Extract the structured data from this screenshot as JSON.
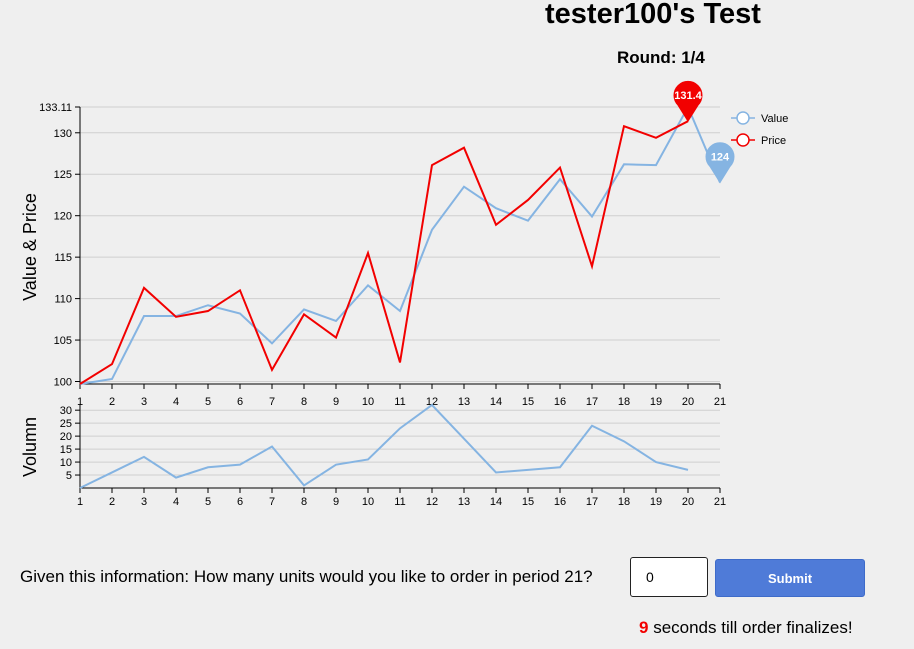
{
  "header": {
    "title": "tester100's Test",
    "round": "Round: 1/4"
  },
  "colors": {
    "value": "#85b4e2",
    "price": "#f20000",
    "button": "#4f7bd8",
    "countdown": "#f20000"
  },
  "chart_data": [
    {
      "type": "line",
      "ylabel": "Value & Price",
      "x": [
        1,
        2,
        3,
        4,
        5,
        6,
        7,
        8,
        9,
        10,
        11,
        12,
        13,
        14,
        15,
        16,
        17,
        18,
        19,
        20,
        21
      ],
      "y_ticks": [
        "100",
        "105",
        "110",
        "115",
        "120",
        "125",
        "130",
        "133.11"
      ],
      "ylim": [
        99.7,
        133.11
      ],
      "series": [
        {
          "name": "Value",
          "x": [
            1,
            2,
            3,
            4,
            5,
            6,
            7,
            8,
            9,
            10,
            11,
            12,
            13,
            14,
            15,
            16,
            17,
            18,
            19,
            20,
            21
          ],
          "values": [
            99.7,
            100.3,
            107.9,
            107.9,
            109.2,
            108.2,
            104.6,
            108.7,
            107.3,
            111.6,
            108.5,
            118.3,
            123.5,
            120.9,
            119.4,
            124.4,
            119.9,
            126.2,
            126.1,
            133.11,
            124
          ]
        },
        {
          "name": "Price",
          "x": [
            1,
            2,
            3,
            4,
            5,
            6,
            7,
            8,
            9,
            10,
            11,
            12,
            13,
            14,
            15,
            16,
            17,
            18,
            19,
            20
          ],
          "values": [
            99.7,
            102.1,
            111.3,
            107.8,
            108.5,
            111.0,
            101.4,
            108.1,
            105.3,
            115.5,
            102.3,
            126.1,
            128.2,
            118.9,
            121.9,
            125.8,
            113.9,
            130.8,
            129.4,
            131.4
          ]
        }
      ],
      "markers": [
        {
          "series": "Price",
          "label": "131.4"
        },
        {
          "series": "Value",
          "label": "124"
        }
      ],
      "legend": [
        "Value",
        "Price"
      ],
      "legend_position": "top-right",
      "grid": true
    },
    {
      "type": "line",
      "ylabel": "Volumn",
      "x": [
        1,
        2,
        3,
        4,
        5,
        6,
        7,
        8,
        9,
        10,
        11,
        12,
        13,
        14,
        15,
        16,
        17,
        18,
        19,
        20,
        21
      ],
      "y_ticks": [
        "5",
        "10",
        "15",
        "20",
        "25",
        "30"
      ],
      "ylim": [
        0,
        32
      ],
      "series": [
        {
          "name": "Volumn",
          "x": [
            1,
            2,
            3,
            4,
            5,
            6,
            7,
            8,
            9,
            10,
            11,
            12,
            13,
            14,
            15,
            16,
            17,
            18,
            19,
            20
          ],
          "values": [
            0,
            6,
            12,
            4,
            8,
            9,
            16,
            1,
            9,
            11,
            23,
            32,
            19,
            6,
            7,
            8,
            24,
            18,
            10,
            7
          ]
        }
      ],
      "grid": true
    }
  ],
  "question": {
    "text": "Given this information: How many units would you like to order in period 21?",
    "value": "0"
  },
  "submit": {
    "label": "Submit"
  },
  "countdown": {
    "seconds": "9",
    "text": " seconds till order finalizes!"
  }
}
